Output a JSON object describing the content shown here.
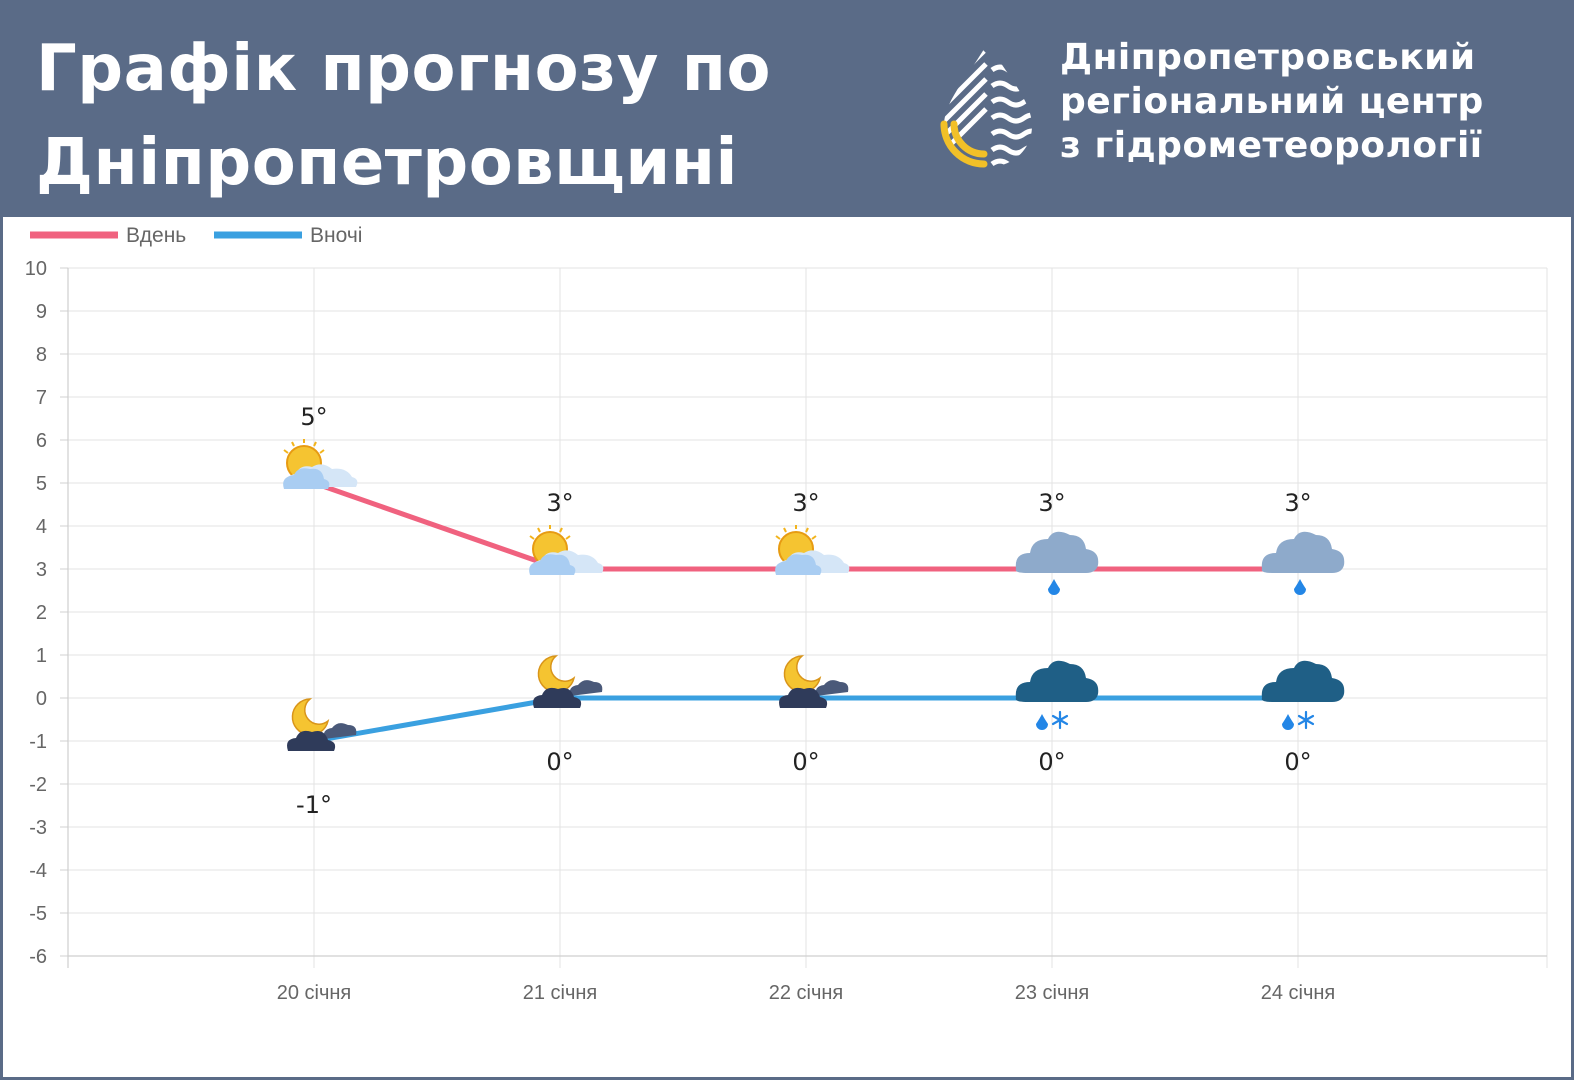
{
  "header": {
    "title_line1": "Графік прогнозу по",
    "title_line2": "Дніпропетровщині",
    "org_line1": "Дніпропетровський",
    "org_line2": "регіональний центр",
    "org_line3": "з гідрометеорології",
    "colors": {
      "band": "#5a6b87",
      "logo_yellow": "#f2c028",
      "text": "#ffffff"
    }
  },
  "chart_data": {
    "type": "line",
    "categories": [
      "20 січня",
      "21 січня",
      "22 січня",
      "23 січня",
      "24 січня"
    ],
    "series": [
      {
        "name": "Вдень",
        "color": "#f0627f",
        "values": [
          5,
          3,
          3,
          3,
          3
        ],
        "labels": [
          "5°",
          "3°",
          "3°",
          "3°",
          "3°"
        ],
        "icons": [
          "partly-cloudy-sun-icon",
          "partly-cloudy-sun-icon",
          "partly-cloudy-sun-icon",
          "cloud-rain-icon",
          "cloud-rain-icon"
        ]
      },
      {
        "name": "Вночі",
        "color": "#3aa0e0",
        "values": [
          -1,
          0,
          0,
          0,
          0
        ],
        "labels": [
          "-1°",
          "0°",
          "0°",
          "0°",
          "0°"
        ],
        "icons": [
          "night-cloudy-moon-icon",
          "night-cloudy-moon-icon",
          "night-cloudy-moon-icon",
          "cloud-rain-snow-icon",
          "cloud-rain-snow-icon"
        ]
      }
    ],
    "ylim": [
      -6,
      10
    ],
    "yticks": [
      "10",
      "9",
      "8",
      "7",
      "6",
      "5",
      "4",
      "3",
      "2",
      "1",
      "0",
      "-1",
      "-2",
      "-3",
      "-4",
      "-5",
      "-6"
    ],
    "grid": true,
    "legend": "top-left"
  }
}
